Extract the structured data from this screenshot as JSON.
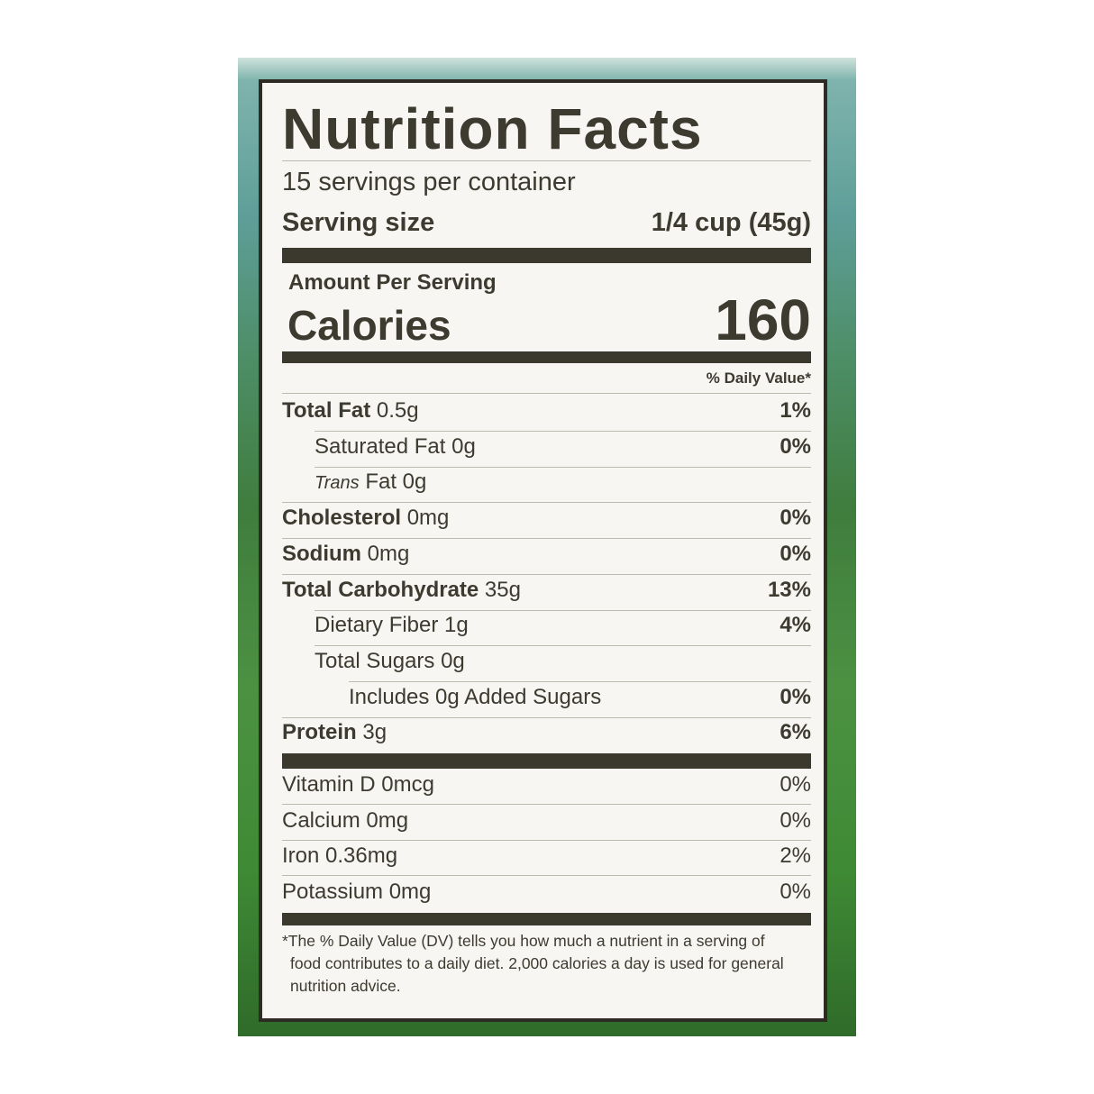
{
  "title": "Nutrition Facts",
  "servings_per_container": "15 servings per container",
  "serving_size": {
    "label": "Serving size",
    "value": "1/4 cup (45g)"
  },
  "amount_per_serving": "Amount Per Serving",
  "calories": {
    "label": "Calories",
    "value": "160"
  },
  "daily_value_header": "% Daily Value*",
  "nutrients": [
    {
      "name": "Total Fat",
      "amount": "0.5g",
      "dv": "1%"
    },
    {
      "name": "Saturated Fat",
      "amount": "0g",
      "dv": "0%"
    },
    {
      "name": "Trans",
      "amount": "Fat 0g",
      "dv": ""
    },
    {
      "name": "Cholesterol",
      "amount": "0mg",
      "dv": "0%"
    },
    {
      "name": "Sodium",
      "amount": "0mg",
      "dv": "0%"
    },
    {
      "name": "Total Carbohydrate",
      "amount": "35g",
      "dv": "13%"
    },
    {
      "name": "Dietary Fiber",
      "amount": "1g",
      "dv": "4%"
    },
    {
      "name": "Total Sugars",
      "amount": "0g",
      "dv": ""
    },
    {
      "name": "Includes 0g Added Sugars",
      "amount": "",
      "dv": "0%"
    },
    {
      "name": "Protein",
      "amount": "3g",
      "dv": "6%"
    }
  ],
  "vitamins": [
    {
      "label": "Vitamin D 0mcg",
      "dv": "0%"
    },
    {
      "label": "Calcium 0mg",
      "dv": "0%"
    },
    {
      "label": "Iron 0.36mg",
      "dv": "2%"
    },
    {
      "label": "Potassium 0mg",
      "dv": "0%"
    }
  ],
  "footnote": "*The % Daily Value (DV) tells you how much a nutrient in a serving of food contributes to a daily diet. 2,000 calories a day is used for general nutrition advice.",
  "colors": {
    "ink": "#3d3a30",
    "label_bg": "#f7f6f2",
    "photo_sky": "#5e9e98",
    "photo_grass": "#3f8a35"
  }
}
